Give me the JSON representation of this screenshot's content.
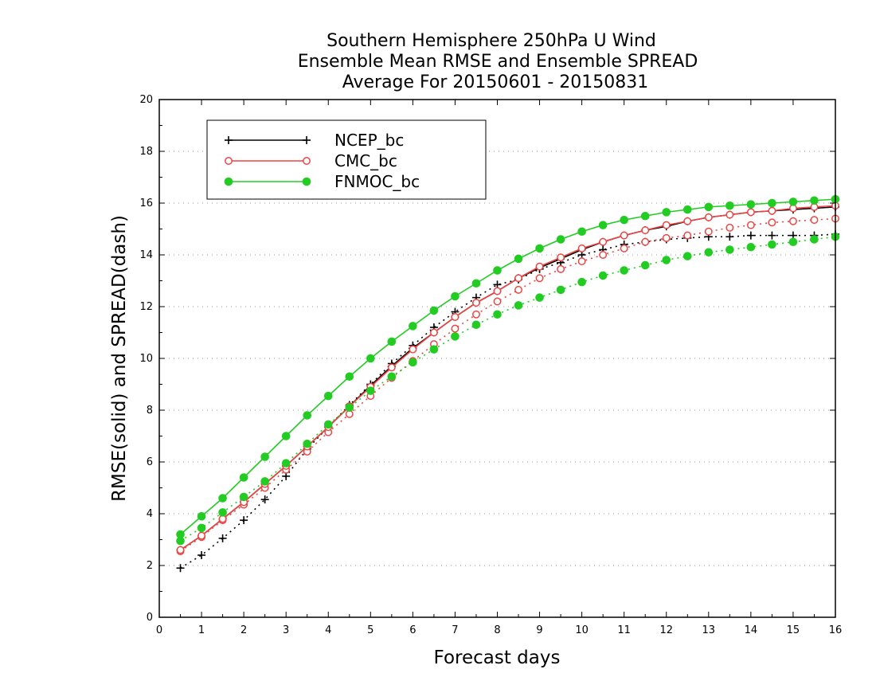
{
  "chart_data": {
    "type": "line",
    "title": [
      "Southern Hemisphere 250hPa U Wind",
      "Ensemble Mean RMSE and Ensemble SPREAD",
      "Average For 20150601 - 20150831"
    ],
    "xlabel": "Forecast days",
    "ylabel": "RMSE(solid) and SPREAD(dash)",
    "xlim": [
      0,
      16
    ],
    "ylim": [
      0,
      20
    ],
    "xticks": [
      "0",
      "1",
      "2",
      "3",
      "4",
      "5",
      "6",
      "7",
      "8",
      "9",
      "10",
      "11",
      "12",
      "13",
      "14",
      "15",
      "16"
    ],
    "yticks": [
      "0",
      "2",
      "4",
      "6",
      "8",
      "10",
      "12",
      "14",
      "16",
      "18",
      "20"
    ],
    "grid": "horizontal dotted",
    "legend_position": "top-left",
    "x": [
      0.5,
      1,
      1.5,
      2,
      2.5,
      3,
      3.5,
      4,
      4.5,
      5,
      5.5,
      6,
      6.5,
      7,
      7.5,
      8,
      8.5,
      9,
      9.5,
      10,
      10.5,
      11,
      11.5,
      12,
      12.5,
      13,
      13.5,
      14,
      14.5,
      15,
      15.5,
      16
    ],
    "series": [
      {
        "name": "NCEP_bc",
        "color": "#000000",
        "marker": "plus",
        "rmse": [
          2.6,
          3.15,
          3.8,
          4.45,
          5.15,
          5.85,
          6.6,
          7.35,
          8.15,
          8.95,
          9.7,
          10.4,
          11.0,
          11.6,
          12.15,
          12.6,
          13.1,
          13.5,
          13.85,
          14.2,
          14.5,
          14.75,
          14.95,
          15.1,
          15.3,
          15.45,
          15.55,
          15.65,
          15.7,
          15.75,
          15.8,
          15.85
        ],
        "spread": [
          1.9,
          2.4,
          3.05,
          3.75,
          4.55,
          5.45,
          6.5,
          7.35,
          8.2,
          9.0,
          9.8,
          10.5,
          11.2,
          11.8,
          12.35,
          12.85,
          13.05,
          13.45,
          13.7,
          14.0,
          14.2,
          14.4,
          14.5,
          14.6,
          14.65,
          14.7,
          14.7,
          14.75,
          14.75,
          14.75,
          14.75,
          14.8
        ]
      },
      {
        "name": "CMC_bc",
        "color": "#ee4444",
        "marker": "circle-open",
        "rmse": [
          2.6,
          3.15,
          3.8,
          4.45,
          5.15,
          5.85,
          6.6,
          7.35,
          8.15,
          8.9,
          9.65,
          10.35,
          11.0,
          11.6,
          12.15,
          12.6,
          13.1,
          13.55,
          13.9,
          14.25,
          14.5,
          14.75,
          14.95,
          15.15,
          15.3,
          15.45,
          15.55,
          15.65,
          15.7,
          15.8,
          15.85,
          15.9
        ],
        "spread": [
          2.55,
          3.1,
          3.75,
          4.35,
          5.0,
          5.7,
          6.4,
          7.15,
          7.85,
          8.55,
          9.25,
          9.9,
          10.55,
          11.15,
          11.7,
          12.2,
          12.65,
          13.1,
          13.45,
          13.75,
          14.0,
          14.25,
          14.5,
          14.65,
          14.75,
          14.9,
          15.05,
          15.15,
          15.25,
          15.3,
          15.35,
          15.4
        ]
      },
      {
        "name": "FNMOC_bc",
        "color": "#22cc22",
        "marker": "circle-filled",
        "rmse": [
          3.2,
          3.9,
          4.6,
          5.4,
          6.2,
          7.0,
          7.8,
          8.55,
          9.3,
          10.0,
          10.65,
          11.25,
          11.85,
          12.4,
          12.9,
          13.4,
          13.85,
          14.25,
          14.6,
          14.9,
          15.15,
          15.35,
          15.5,
          15.65,
          15.75,
          15.85,
          15.9,
          15.95,
          16.0,
          16.05,
          16.1,
          16.15
        ],
        "spread": [
          2.95,
          3.45,
          4.05,
          4.65,
          5.25,
          5.95,
          6.7,
          7.45,
          8.1,
          8.75,
          9.3,
          9.85,
          10.35,
          10.85,
          11.3,
          11.7,
          12.05,
          12.35,
          12.65,
          12.95,
          13.2,
          13.4,
          13.6,
          13.8,
          13.95,
          14.1,
          14.2,
          14.3,
          14.4,
          14.5,
          14.6,
          14.7
        ]
      }
    ]
  }
}
